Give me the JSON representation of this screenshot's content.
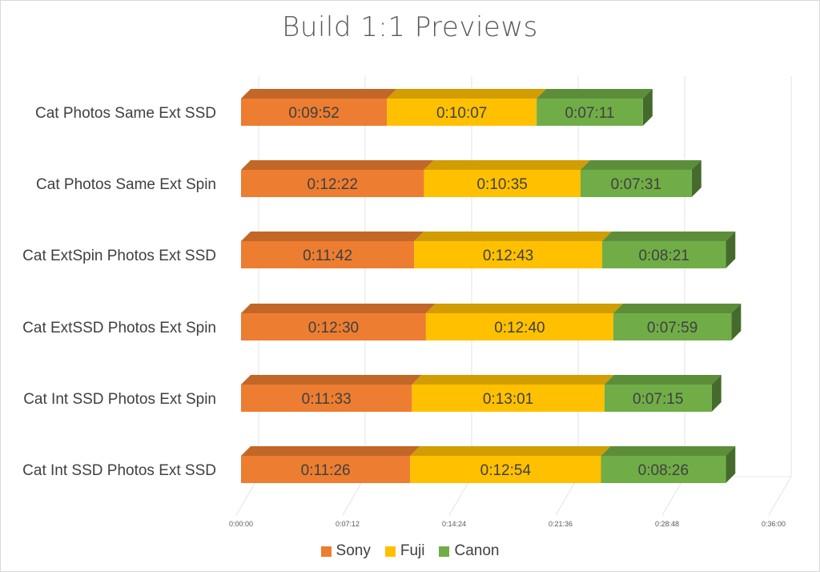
{
  "chart_data": {
    "type": "bar",
    "orientation": "horizontal",
    "stacked": true,
    "style": "3d",
    "title": "Build 1:1 Previews",
    "categories": [
      "Cat Photos Same Ext SSD",
      "Cat Photos Same Ext Spin",
      "Cat ExtSpin Photos Ext SSD",
      "Cat ExtSSD Photos Ext Spin",
      "Cat Int SSD Photos Ext Spin",
      "Cat Int SSD Photos Ext SSD"
    ],
    "series": [
      {
        "name": "Sony",
        "color": "#ed7d31",
        "values": [
          "0:09:52",
          "0:12:22",
          "0:11:42",
          "0:12:30",
          "0:11:33",
          "0:11:26"
        ]
      },
      {
        "name": "Fuji",
        "color": "#ffc000",
        "values": [
          "0:10:07",
          "0:10:35",
          "0:12:43",
          "0:12:40",
          "0:13:01",
          "0:12:54"
        ]
      },
      {
        "name": "Canon",
        "color": "#70ad47",
        "values": [
          "0:07:11",
          "0:07:31",
          "0:08:21",
          "0:07:59",
          "0:07:15",
          "0:08:26"
        ]
      }
    ],
    "x_ticks": [
      "0:00:00",
      "0:07:12",
      "0:14:24",
      "0:21:36",
      "0:28:48",
      "0:36:00"
    ],
    "xlim": [
      "0:00:00",
      "0:36:00"
    ],
    "grid": true,
    "legend_position": "bottom",
    "data_labels": true
  }
}
